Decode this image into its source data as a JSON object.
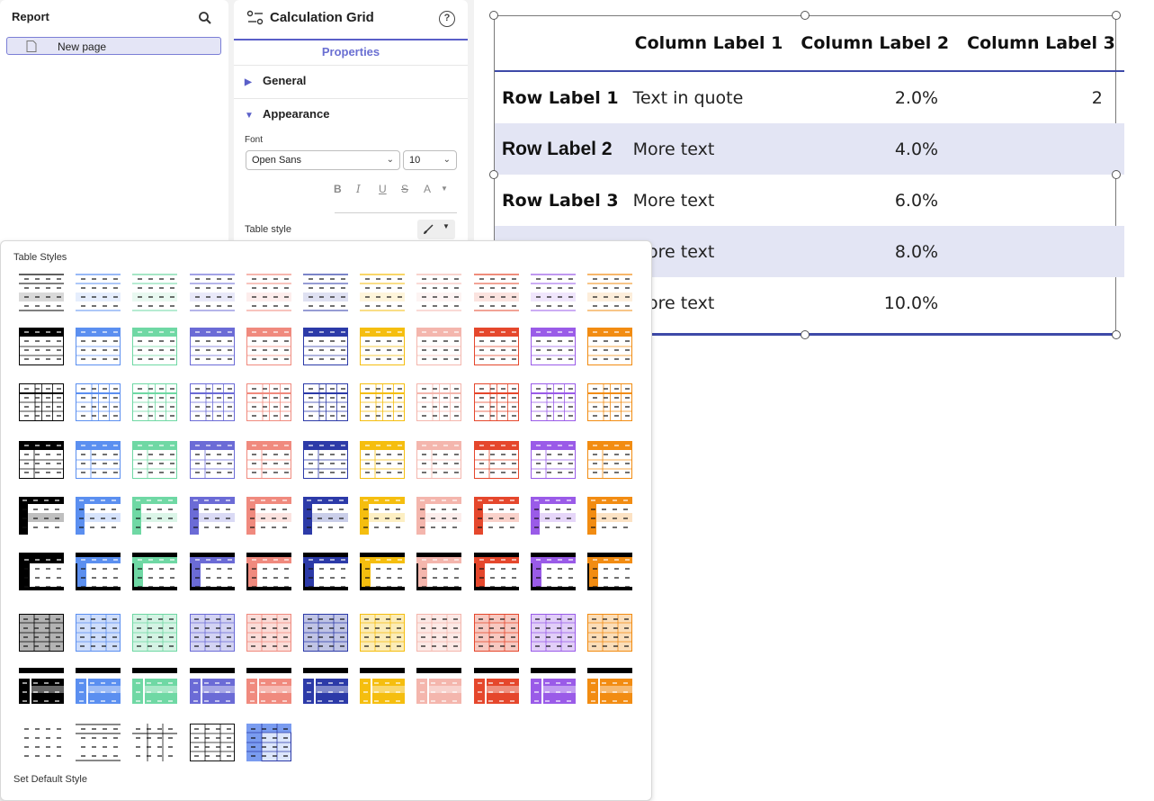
{
  "report_panel": {
    "title": "Report",
    "page_label": "New page"
  },
  "properties_panel": {
    "title": "Calculation Grid",
    "tab": "Properties",
    "sections": {
      "general": "General",
      "appearance": "Appearance"
    },
    "font_label": "Font",
    "font_value": "Open Sans",
    "size_value": "10",
    "format_buttons": [
      "B",
      "I",
      "U",
      "S",
      "A"
    ],
    "table_style_label": "Table style"
  },
  "grid": {
    "headers": [
      "",
      "Column Label 1",
      "Column Label 2",
      "Column Label 3"
    ],
    "rows": [
      [
        "Row Label 1",
        "Text in quote",
        "2.0%",
        "2"
      ],
      [
        "Row Label 2",
        "More text",
        "4.0%",
        ""
      ],
      [
        "Row Label 3",
        "More text",
        "6.0%",
        ""
      ],
      [
        "",
        "More text",
        "8.0%",
        ""
      ],
      [
        "",
        "More text",
        "10.0%",
        ""
      ]
    ]
  },
  "table_styles": {
    "title": "Table Styles",
    "footer": "Set Default Style",
    "palette": [
      "#000000",
      "#5b8ff0",
      "#6fd8a4",
      "#6b6bd6",
      "#f08a7e",
      "#2c3aa8",
      "#f5be0f",
      "#f4b6ad",
      "#e5472c",
      "#9a5be8",
      "#f28c12"
    ],
    "rows": 8,
    "extra_count": 5
  }
}
